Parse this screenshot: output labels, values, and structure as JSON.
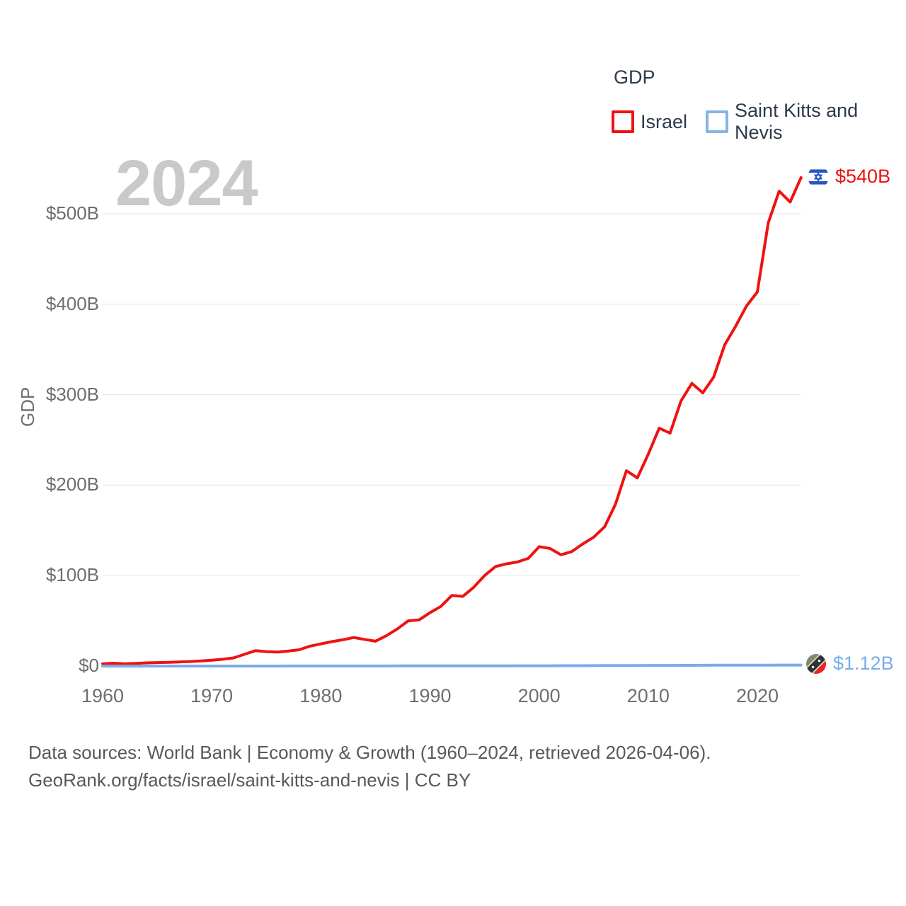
{
  "legend": {
    "title": "GDP",
    "items": [
      {
        "label": "Israel",
        "color": "#ee1212"
      },
      {
        "label": "Saint Kitts and Nevis",
        "color": "#85b3e8"
      }
    ]
  },
  "watermark": "2024",
  "end_labels": [
    {
      "series": "Israel",
      "value": "$540B",
      "icon": "israel-flag-icon",
      "color": "#ee1212"
    },
    {
      "series": "Saint Kitts and Nevis",
      "value": "$1.12B",
      "icon": "saint-kitts-and-nevis-flag-icon",
      "color": "#79ade8"
    }
  ],
  "footer": {
    "line1": "Data sources: World Bank | Economy & Growth (1960–2024, retrieved 2026-04-06).",
    "line2": "GeoRank.org/facts/israel/saint-kitts-and-nevis | CC BY"
  },
  "chart_data": {
    "type": "line",
    "title": "GDP",
    "ylabel": "GDP",
    "xlabel": "",
    "x_range": [
      1960,
      2024
    ],
    "ylim": [
      0,
      560
    ],
    "grid": true,
    "legend_position": "top-right",
    "y_ticks": [
      {
        "label": "$0",
        "value": 0
      },
      {
        "label": "$100B",
        "value": 100
      },
      {
        "label": "$200B",
        "value": 200
      },
      {
        "label": "$300B",
        "value": 300
      },
      {
        "label": "$400B",
        "value": 400
      },
      {
        "label": "$500B",
        "value": 500
      }
    ],
    "x_ticks": [
      {
        "label": "1960",
        "value": 1960
      },
      {
        "label": "1970",
        "value": 1970
      },
      {
        "label": "1980",
        "value": 1980
      },
      {
        "label": "1990",
        "value": 1990
      },
      {
        "label": "2000",
        "value": 2000
      },
      {
        "label": "2010",
        "value": 2010
      },
      {
        "label": "2020",
        "value": 2020
      }
    ],
    "x": [
      1960,
      1961,
      1962,
      1963,
      1964,
      1965,
      1966,
      1967,
      1968,
      1969,
      1970,
      1971,
      1972,
      1973,
      1974,
      1975,
      1976,
      1977,
      1978,
      1979,
      1980,
      1981,
      1982,
      1983,
      1984,
      1985,
      1986,
      1987,
      1988,
      1989,
      1990,
      1991,
      1992,
      1993,
      1994,
      1995,
      1996,
      1997,
      1998,
      1999,
      2000,
      2001,
      2002,
      2003,
      2004,
      2005,
      2006,
      2007,
      2008,
      2009,
      2010,
      2011,
      2012,
      2013,
      2014,
      2015,
      2016,
      2017,
      2018,
      2019,
      2020,
      2021,
      2022,
      2023,
      2024
    ],
    "series": [
      {
        "name": "Israel",
        "color": "#ee1212",
        "unit": "billion USD",
        "end_value_label": "$540B",
        "values": [
          2.6,
          3.1,
          2.6,
          3.0,
          3.5,
          3.8,
          4.1,
          4.5,
          5.0,
          5.6,
          6.5,
          7.5,
          9.0,
          13.0,
          17.0,
          16.0,
          15.5,
          16.5,
          18.0,
          22.0,
          24.5,
          27.0,
          29.0,
          31.5,
          29.5,
          27.5,
          33.5,
          41.0,
          50.0,
          51.0,
          59.0,
          66.0,
          78.0,
          77.0,
          87.0,
          100.0,
          110.0,
          113.0,
          115.0,
          119.0,
          132.0,
          130.0,
          123.0,
          126.5,
          135.0,
          142.5,
          154.0,
          179.0,
          216.0,
          208.0,
          234.0,
          263.0,
          257.5,
          293.0,
          312.5,
          302.0,
          319.5,
          355.0,
          375.5,
          398.0,
          413.5,
          490.0,
          525.0,
          513.0,
          540.0
        ]
      },
      {
        "name": "Saint Kitts and Nevis",
        "color": "#79ade8",
        "unit": "billion USD",
        "end_value_label": "$1.12B",
        "values": [
          0.01,
          0.011,
          0.012,
          0.013,
          0.014,
          0.015,
          0.016,
          0.017,
          0.018,
          0.019,
          0.02,
          0.022,
          0.025,
          0.028,
          0.031,
          0.034,
          0.037,
          0.04,
          0.044,
          0.048,
          0.053,
          0.059,
          0.066,
          0.074,
          0.082,
          0.09,
          0.105,
          0.12,
          0.135,
          0.15,
          0.16,
          0.175,
          0.19,
          0.205,
          0.22,
          0.23,
          0.25,
          0.27,
          0.29,
          0.31,
          0.33,
          0.345,
          0.36,
          0.385,
          0.42,
          0.48,
          0.54,
          0.59,
          0.64,
          0.62,
          0.68,
          0.72,
          0.73,
          0.765,
          0.82,
          0.85,
          0.9,
          0.95,
          1.01,
          1.05,
          0.93,
          0.98,
          1.07,
          1.1,
          1.12
        ]
      }
    ]
  }
}
